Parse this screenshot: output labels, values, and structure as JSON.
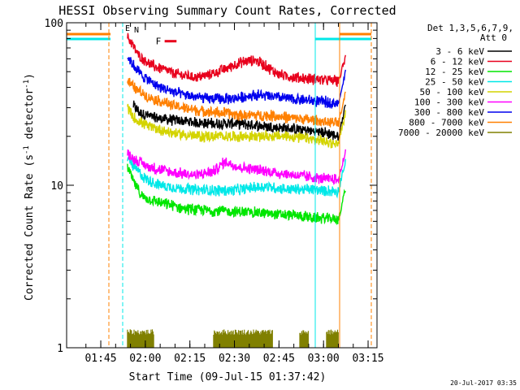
{
  "chart_data": {
    "type": "line",
    "title": "HESSI Observing Summary Count Rates, Corrected",
    "xlabel": "Start Time (09-Jul-15 01:37:42)",
    "ylabel_main": "Corrected Count Rate (s",
    "ylabel_sup1": "-1",
    "ylabel_mid": " detector",
    "ylabel_sup2": "-1",
    "ylabel_end": ")",
    "yscale": "log",
    "ylim": [
      1,
      100
    ],
    "yticks": [
      1,
      10,
      100
    ],
    "ytick_labels": [
      "1",
      "10",
      "100"
    ],
    "xlim_min": [
      -3.5,
      101
    ],
    "xticks_min": [
      8,
      23,
      38,
      53,
      68,
      83,
      98
    ],
    "xtick_labels": [
      "01:45",
      "02:00",
      "02:15",
      "02:30",
      "02:45",
      "03:00",
      "03:15"
    ],
    "legend_header": [
      "Det 1,3,5,6,7,9,",
      "Att 0"
    ],
    "series": [
      {
        "name": "3 - 6 keV",
        "color": "#000000",
        "points": [
          [
            19,
            31
          ],
          [
            21,
            28
          ],
          [
            26,
            26
          ],
          [
            34,
            25
          ],
          [
            44,
            24
          ],
          [
            54,
            24
          ],
          [
            64,
            23
          ],
          [
            75,
            22
          ],
          [
            84,
            21
          ],
          [
            88,
            20
          ]
        ]
      },
      {
        "name": "6 - 12 keV",
        "color": "#e8001c",
        "points": [
          [
            17,
            82
          ],
          [
            19,
            72
          ],
          [
            21,
            62
          ],
          [
            26,
            54
          ],
          [
            34,
            48
          ],
          [
            41,
            46
          ],
          [
            46,
            49
          ],
          [
            51,
            53
          ],
          [
            55,
            57
          ],
          [
            60,
            59
          ],
          [
            63,
            55
          ],
          [
            68,
            48
          ],
          [
            74,
            46
          ],
          [
            80,
            45
          ],
          [
            88,
            44
          ]
        ]
      },
      {
        "name": "12 - 25 keV",
        "color": "#00e600",
        "points": [
          [
            17,
            13
          ],
          [
            19,
            10.5
          ],
          [
            22,
            8.5
          ],
          [
            28,
            7.8
          ],
          [
            36,
            7.2
          ],
          [
            44,
            7.0
          ],
          [
            52,
            6.9
          ],
          [
            60,
            6.8
          ],
          [
            68,
            6.6
          ],
          [
            74,
            6.5
          ],
          [
            80,
            6.3
          ],
          [
            88,
            6.2
          ]
        ]
      },
      {
        "name": "25 - 50 keV",
        "color": "#00e8e8",
        "points": [
          [
            17,
            15
          ],
          [
            19,
            13
          ],
          [
            23,
            11
          ],
          [
            28,
            10
          ],
          [
            36,
            9.5
          ],
          [
            44,
            9.3
          ],
          [
            52,
            9.3
          ],
          [
            58,
            9.6
          ],
          [
            64,
            9.8
          ],
          [
            70,
            9.5
          ],
          [
            78,
            9.4
          ],
          [
            88,
            9.2
          ]
        ]
      },
      {
        "name": "50 - 100 keV",
        "color": "#d4d400",
        "points": [
          [
            17,
            30
          ],
          [
            19,
            26
          ],
          [
            24,
            23
          ],
          [
            32,
            21
          ],
          [
            40,
            20
          ],
          [
            48,
            20
          ],
          [
            56,
            20
          ],
          [
            64,
            20
          ],
          [
            72,
            20
          ],
          [
            80,
            19
          ],
          [
            88,
            18
          ]
        ]
      },
      {
        "name": "100 - 300 keV",
        "color": "#ff00ff",
        "points": [
          [
            17,
            16
          ],
          [
            19,
            14.5
          ],
          [
            24,
            13
          ],
          [
            32,
            12
          ],
          [
            40,
            11.5
          ],
          [
            46,
            12.2
          ],
          [
            50,
            14
          ],
          [
            54,
            13
          ],
          [
            60,
            12.5
          ],
          [
            66,
            12
          ],
          [
            74,
            11.5
          ],
          [
            82,
            11
          ],
          [
            88,
            10.8
          ]
        ]
      },
      {
        "name": "300 - 800 keV",
        "color": "#0000ee",
        "points": [
          [
            17,
            62
          ],
          [
            19,
            55
          ],
          [
            22,
            47
          ],
          [
            28,
            40
          ],
          [
            36,
            36
          ],
          [
            44,
            34
          ],
          [
            52,
            34
          ],
          [
            60,
            36
          ],
          [
            66,
            35
          ],
          [
            72,
            34
          ],
          [
            80,
            33
          ],
          [
            88,
            32
          ]
        ]
      },
      {
        "name": "800 - 7000 keV",
        "color": "#ff8000",
        "points": [
          [
            17,
            44
          ],
          [
            19,
            40
          ],
          [
            24,
            35
          ],
          [
            32,
            31
          ],
          [
            40,
            29
          ],
          [
            48,
            28
          ],
          [
            56,
            27
          ],
          [
            64,
            27
          ],
          [
            72,
            26
          ],
          [
            80,
            25
          ],
          [
            88,
            24
          ]
        ]
      },
      {
        "name": "7000 - 20000 keV",
        "color": "#808000",
        "points": [
          [
            17,
            1.3
          ],
          [
            21,
            1.2
          ],
          [
            26,
            1.2
          ]
        ]
      }
    ],
    "flare_marker": {
      "label": "F",
      "x_min": [
        29.5,
        33.5
      ],
      "y": 77,
      "color": "#e8001c"
    },
    "edge_annotations": [
      {
        "label": "E",
        "x_min": 16.2,
        "y": 89,
        "color": "#ff8000"
      },
      {
        "label": "N",
        "x_min": 19.2,
        "y": 87,
        "color": "#00e8e8"
      }
    ],
    "footer_date": "20-Jul-2017 03:35",
    "grid": false,
    "legend_position": "right"
  }
}
